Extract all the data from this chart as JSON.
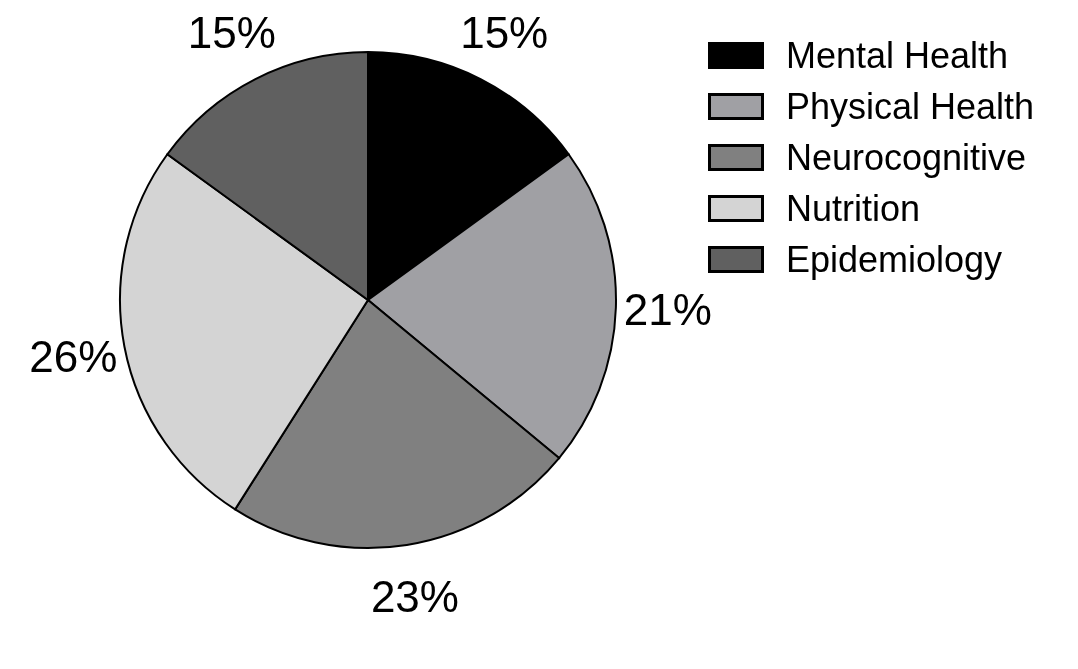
{
  "chart_data": {
    "type": "pie",
    "categories": [
      "Mental Health",
      "Physical Health",
      "Neurocognitive",
      "Nutrition",
      "Epidemiology"
    ],
    "values": [
      15,
      21,
      23,
      26,
      15
    ],
    "colors": [
      "#000000",
      "#a0a0a4",
      "#808080",
      "#d4d4d4",
      "#606060"
    ],
    "value_labels": [
      "15%",
      "21%",
      "23%",
      "26%",
      "15%"
    ],
    "legend": "top right"
  }
}
